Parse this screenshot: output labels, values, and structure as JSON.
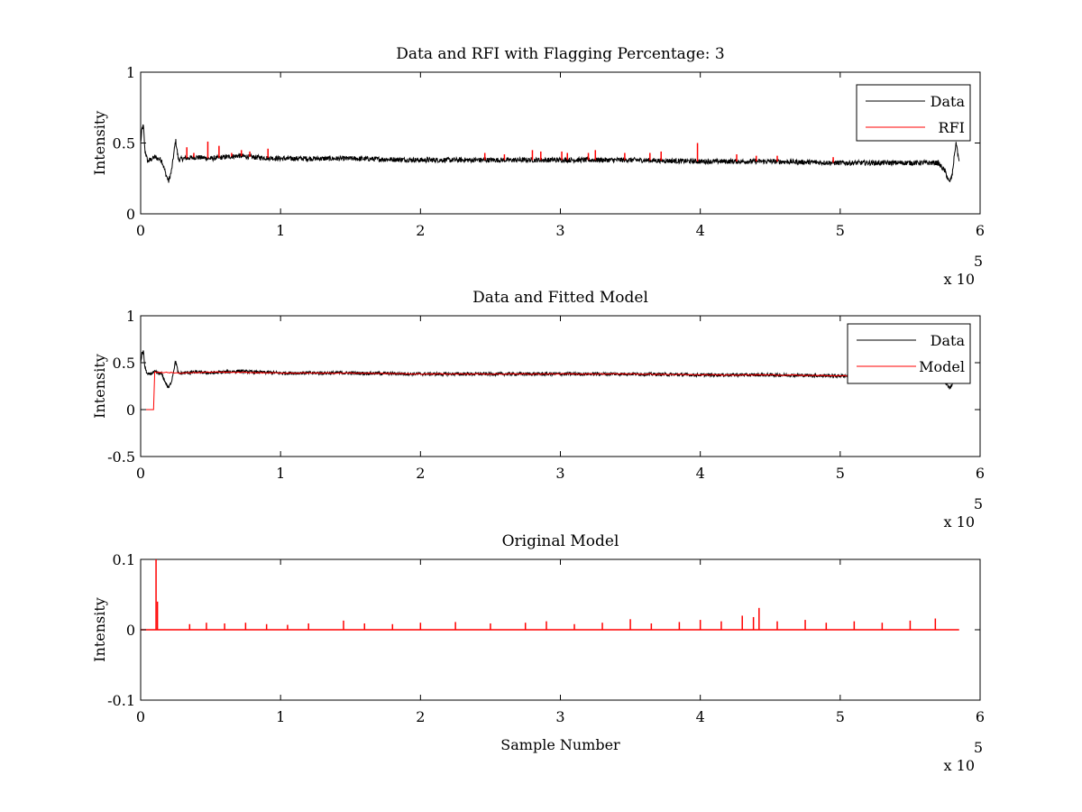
{
  "chart_data": [
    {
      "type": "line",
      "title": "Data and RFI with Flagging Percentage: 3",
      "xlabel": "",
      "ylabel": "Intensity",
      "xlim": [
        0,
        6
      ],
      "ylim": [
        0,
        1
      ],
      "x_exponent": "x 10",
      "x_exponent_power": "5",
      "xticks": [
        "0",
        "1",
        "2",
        "3",
        "4",
        "5",
        "6"
      ],
      "yticks": [
        "0",
        "0.5",
        "1"
      ],
      "xtick_values": [
        0,
        1,
        2,
        3,
        4,
        5,
        6
      ],
      "ytick_values": [
        0,
        0.5,
        1
      ],
      "legend_position": "top-right",
      "series": [
        {
          "name": "Data",
          "color": "#000000",
          "x": [
            0,
            0.01,
            0.02,
            0.03,
            0.05,
            0.1,
            0.15,
            0.18,
            0.2,
            0.22,
            0.25,
            0.27,
            0.3,
            0.4,
            0.5,
            0.6,
            0.7,
            0.8,
            1.0,
            1.5,
            2.0,
            2.5,
            3.0,
            3.5,
            4.0,
            4.5,
            5.0,
            5.5,
            5.7,
            5.75,
            5.78,
            5.8,
            5.82,
            5.83,
            5.85
          ],
          "y": [
            0.5,
            0.6,
            0.62,
            0.45,
            0.37,
            0.4,
            0.38,
            0.28,
            0.23,
            0.3,
            0.52,
            0.38,
            0.39,
            0.4,
            0.39,
            0.4,
            0.41,
            0.4,
            0.39,
            0.39,
            0.38,
            0.38,
            0.38,
            0.38,
            0.37,
            0.37,
            0.36,
            0.36,
            0.36,
            0.3,
            0.22,
            0.27,
            0.45,
            0.5,
            0.36
          ]
        },
        {
          "name": "RFI",
          "color": "#ff0000",
          "spikes": [
            {
              "x": 0.33,
              "y": 0.47
            },
            {
              "x": 0.38,
              "y": 0.43
            },
            {
              "x": 0.48,
              "y": 0.51
            },
            {
              "x": 0.56,
              "y": 0.48
            },
            {
              "x": 0.65,
              "y": 0.43
            },
            {
              "x": 0.72,
              "y": 0.45
            },
            {
              "x": 0.78,
              "y": 0.44
            },
            {
              "x": 0.91,
              "y": 0.46
            },
            {
              "x": 2.46,
              "y": 0.43
            },
            {
              "x": 2.6,
              "y": 0.42
            },
            {
              "x": 2.8,
              "y": 0.45
            },
            {
              "x": 2.86,
              "y": 0.44
            },
            {
              "x": 3.01,
              "y": 0.44
            },
            {
              "x": 3.05,
              "y": 0.43
            },
            {
              "x": 3.2,
              "y": 0.43
            },
            {
              "x": 3.25,
              "y": 0.45
            },
            {
              "x": 3.46,
              "y": 0.43
            },
            {
              "x": 3.64,
              "y": 0.43
            },
            {
              "x": 3.72,
              "y": 0.44
            },
            {
              "x": 3.98,
              "y": 0.5
            },
            {
              "x": 4.26,
              "y": 0.42
            },
            {
              "x": 4.4,
              "y": 0.41
            },
            {
              "x": 4.55,
              "y": 0.41
            },
            {
              "x": 4.95,
              "y": 0.4
            }
          ]
        }
      ]
    },
    {
      "type": "line",
      "title": "Data and Fitted Model",
      "xlabel": "",
      "ylabel": "Intensity",
      "xlim": [
        0,
        6
      ],
      "ylim": [
        -0.5,
        1
      ],
      "x_exponent": "x 10",
      "x_exponent_power": "5",
      "xticks": [
        "0",
        "1",
        "2",
        "3",
        "4",
        "5",
        "6"
      ],
      "yticks": [
        "-0.5",
        "0",
        "0.5",
        "1"
      ],
      "xtick_values": [
        0,
        1,
        2,
        3,
        4,
        5,
        6
      ],
      "ytick_values": [
        -0.5,
        0,
        0.5,
        1
      ],
      "legend_position": "top-right",
      "series": [
        {
          "name": "Data",
          "color": "#000000",
          "x": [
            0,
            0.01,
            0.02,
            0.03,
            0.05,
            0.1,
            0.15,
            0.18,
            0.2,
            0.22,
            0.25,
            0.27,
            0.3,
            0.4,
            0.5,
            0.6,
            0.7,
            0.8,
            1.0,
            1.5,
            2.0,
            2.5,
            3.0,
            3.5,
            4.0,
            4.5,
            5.0,
            5.5,
            5.7,
            5.75,
            5.78,
            5.8,
            5.82,
            5.83,
            5.85
          ],
          "y": [
            0.5,
            0.6,
            0.62,
            0.45,
            0.37,
            0.4,
            0.38,
            0.28,
            0.23,
            0.3,
            0.52,
            0.38,
            0.39,
            0.4,
            0.39,
            0.4,
            0.41,
            0.4,
            0.39,
            0.39,
            0.38,
            0.38,
            0.38,
            0.38,
            0.37,
            0.37,
            0.36,
            0.36,
            0.36,
            0.3,
            0.22,
            0.27,
            0.45,
            0.5,
            0.36
          ]
        },
        {
          "name": "Model",
          "color": "#ff0000",
          "x": [
            0,
            0.1,
            0.1,
            0.3,
            0.5,
            1.0,
            1.5,
            2.0,
            2.5,
            3.0,
            3.5,
            4.0,
            4.5,
            5.0,
            5.5,
            5.85
          ],
          "y": [
            0,
            0,
            0.4,
            0.39,
            0.4,
            0.39,
            0.39,
            0.38,
            0.38,
            0.38,
            0.38,
            0.37,
            0.37,
            0.36,
            0.36,
            0.36
          ]
        }
      ]
    },
    {
      "type": "line",
      "title": "Original Model",
      "xlabel": "Sample Number",
      "ylabel": "Intensity",
      "xlim": [
        0,
        6
      ],
      "ylim": [
        -0.1,
        0.1
      ],
      "x_exponent": "x 10",
      "x_exponent_power": "5",
      "xticks": [
        "0",
        "1",
        "2",
        "3",
        "4",
        "5",
        "6"
      ],
      "yticks": [
        "-0.1",
        "0",
        "0.1"
      ],
      "xtick_values": [
        0,
        1,
        2,
        3,
        4,
        5,
        6
      ],
      "ytick_values": [
        -0.1,
        0,
        0.1
      ],
      "legend_position": "none",
      "series": [
        {
          "color": "#ff0000",
          "baseline": 0,
          "x_range": [
            0,
            5.85
          ],
          "spikes": [
            {
              "x": 0.11,
              "y": 0.1
            },
            {
              "x": 0.12,
              "y": 0.04
            },
            {
              "x": 0.35,
              "y": 0.008
            },
            {
              "x": 0.47,
              "y": 0.01
            },
            {
              "x": 0.6,
              "y": 0.009
            },
            {
              "x": 0.75,
              "y": 0.01
            },
            {
              "x": 0.9,
              "y": 0.008
            },
            {
              "x": 1.05,
              "y": 0.007
            },
            {
              "x": 1.2,
              "y": 0.009
            },
            {
              "x": 1.45,
              "y": 0.013
            },
            {
              "x": 1.6,
              "y": 0.009
            },
            {
              "x": 1.8,
              "y": 0.008
            },
            {
              "x": 2.0,
              "y": 0.01
            },
            {
              "x": 2.25,
              "y": 0.011
            },
            {
              "x": 2.5,
              "y": 0.009
            },
            {
              "x": 2.75,
              "y": 0.01
            },
            {
              "x": 2.9,
              "y": 0.012
            },
            {
              "x": 3.1,
              "y": 0.008
            },
            {
              "x": 3.3,
              "y": 0.01
            },
            {
              "x": 3.5,
              "y": 0.015
            },
            {
              "x": 3.65,
              "y": 0.009
            },
            {
              "x": 3.85,
              "y": 0.011
            },
            {
              "x": 4.0,
              "y": 0.014
            },
            {
              "x": 4.15,
              "y": 0.012
            },
            {
              "x": 4.3,
              "y": 0.02
            },
            {
              "x": 4.38,
              "y": 0.018
            },
            {
              "x": 4.42,
              "y": 0.031
            },
            {
              "x": 4.55,
              "y": 0.012
            },
            {
              "x": 4.75,
              "y": 0.014
            },
            {
              "x": 4.9,
              "y": 0.01
            },
            {
              "x": 5.1,
              "y": 0.012
            },
            {
              "x": 5.3,
              "y": 0.01
            },
            {
              "x": 5.5,
              "y": 0.013
            },
            {
              "x": 5.68,
              "y": 0.016
            }
          ]
        }
      ]
    }
  ]
}
